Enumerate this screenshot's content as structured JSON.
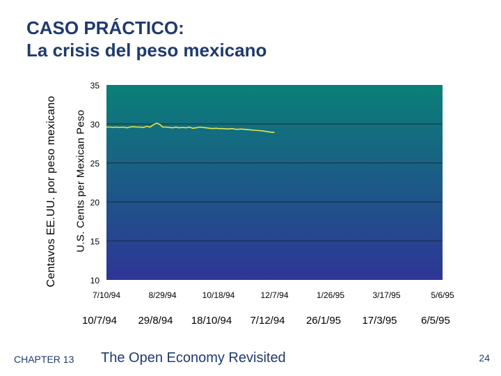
{
  "slide": {
    "title_line1": "CASO PRÁCTICO:",
    "title_line2": "La crisis del peso mexicano",
    "footer_chapter": "CHAPTER 13",
    "footer_title": "The Open Economy Revisited",
    "page_number": "24"
  },
  "chart_data": {
    "type": "line",
    "ylabel": "U.S. Cents per Mexican Peso",
    "ylabel_translation": "Centavos EE.UU. por peso mexicano",
    "ylim": [
      10,
      35
    ],
    "yticks": [
      10,
      15,
      20,
      25,
      30,
      35
    ],
    "xticks": [
      "7/10/94",
      "8/29/94",
      "10/18/94",
      "12/7/94",
      "1/26/95",
      "3/17/95",
      "5/6/95"
    ],
    "xticks_translation": [
      "10/7/94",
      "29/8/94",
      "18/10/94",
      "7/12/94",
      "26/1/95",
      "17/3/95",
      "6/5/95"
    ],
    "grid": true,
    "colors": {
      "line": "#e8e84a",
      "bg_top": "#0a8078",
      "bg_bottom": "#2e3596",
      "grid": "#1a2a3a"
    },
    "series": [
      {
        "x": [
          "7/10/94",
          "7/13/94",
          "7/16/94",
          "7/19/94",
          "7/22/94",
          "7/25/94",
          "7/28/94",
          "7/31/94",
          "8/3/94",
          "8/6/94",
          "8/9/94",
          "8/12/94",
          "8/15/94",
          "8/18/94",
          "8/21/94",
          "8/24/94",
          "8/27/94",
          "8/29/94",
          "9/1/94",
          "9/4/94",
          "9/7/94",
          "9/10/94",
          "9/13/94",
          "9/16/94",
          "9/19/94",
          "9/22/94",
          "9/25/94",
          "9/28/94",
          "10/1/94",
          "10/4/94",
          "10/7/94",
          "10/10/94",
          "10/13/94",
          "10/16/94",
          "10/18/94",
          "10/22/94",
          "10/26/94",
          "10/30/94",
          "11/3/94",
          "11/7/94",
          "11/11/94",
          "11/15/94",
          "11/19/94",
          "11/23/94",
          "11/27/94",
          "12/1/94",
          "12/4/94",
          "12/7/94"
        ],
        "values": [
          29.6,
          29.6,
          29.55,
          29.6,
          29.55,
          29.6,
          29.5,
          29.6,
          29.65,
          29.6,
          29.6,
          29.55,
          29.7,
          29.6,
          29.9,
          30.1,
          29.9,
          29.6,
          29.6,
          29.55,
          29.5,
          29.6,
          29.5,
          29.55,
          29.5,
          29.6,
          29.45,
          29.5,
          29.6,
          29.55,
          29.5,
          29.45,
          29.4,
          29.45,
          29.4,
          29.4,
          29.35,
          29.4,
          29.3,
          29.35,
          29.3,
          29.25,
          29.2,
          29.15,
          29.1,
          29.0,
          28.95,
          28.9
        ]
      }
    ]
  }
}
